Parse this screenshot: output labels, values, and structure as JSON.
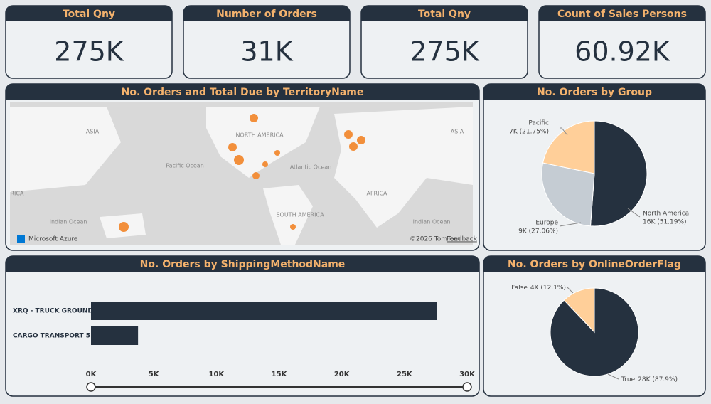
{
  "cards": [
    {
      "title": "Total Qny",
      "value": "275K"
    },
    {
      "title": "Number of Orders",
      "value": "31K"
    },
    {
      "title": "Total Qny",
      "value": "275K"
    },
    {
      "title": "Count of Sales Persons",
      "value": "60.92K"
    }
  ],
  "chart_data": [
    {
      "type": "map",
      "title": "No. Orders and Total Due by TerritoryName",
      "labels": [
        "ASIA",
        "NORTH AMERICA",
        "ASIA",
        "Pacific Ocean",
        "Atlantic Ocean",
        "AFRICA",
        "RICA",
        "Indian Ocean",
        "SOUTH AMERICA",
        "Indian Ocean"
      ],
      "brand": "Microsoft Azure",
      "copyright": "©2026 TomTom",
      "feedback": "Feedback"
    },
    {
      "type": "bar",
      "orientation": "horizontal",
      "title": "No. Orders by ShippingMethodName",
      "categories": [
        "XRQ - TRUCK GROUND",
        "CARGO TRANSPORT 5"
      ],
      "values": [
        27600,
        3750
      ],
      "color": "#25313f",
      "xlim": [
        0,
        30000
      ],
      "xticks": [
        {
          "value": 0,
          "label": "0K"
        },
        {
          "value": 5000,
          "label": "5K"
        },
        {
          "value": 10000,
          "label": "10K"
        },
        {
          "value": 15000,
          "label": "15K"
        },
        {
          "value": 20000,
          "label": "20K"
        },
        {
          "value": 25000,
          "label": "25K"
        },
        {
          "value": 30000,
          "label": "30K"
        }
      ]
    },
    {
      "type": "pie",
      "title": "No. Orders by Group",
      "categories": [
        "North America",
        "Europe",
        "Pacific"
      ],
      "values": [
        51.19,
        27.06,
        21.75
      ],
      "value_labels": [
        "16K (51.19%)",
        "9K (27.06%)",
        "7K (21.75%)"
      ],
      "colors": [
        "#25313f",
        "#c5ccd3",
        "#ffcf99"
      ]
    },
    {
      "type": "pie",
      "title": "No. Orders by OnlineOrderFlag",
      "categories": [
        "True",
        "False"
      ],
      "values": [
        87.9,
        12.1
      ],
      "value_labels": [
        "28K (87.9%)",
        "4K (12.1%)"
      ],
      "colors": [
        "#25313f",
        "#ffcf99"
      ]
    }
  ]
}
